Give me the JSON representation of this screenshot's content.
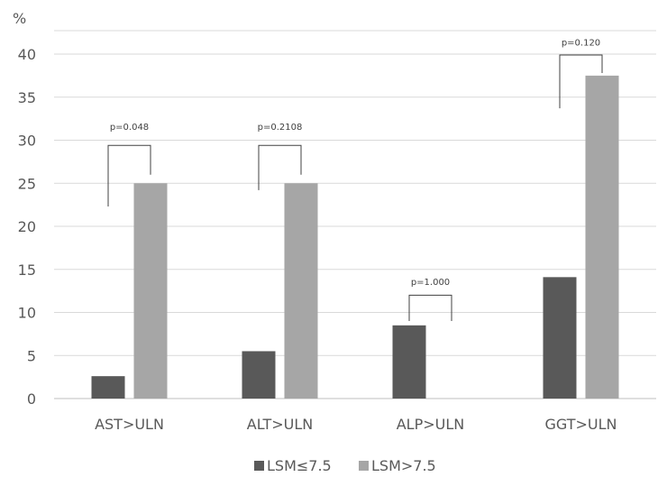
{
  "chart_data": {
    "type": "bar",
    "ylabel": "%",
    "ylim": [
      0,
      40
    ],
    "yticks": [
      0,
      5,
      10,
      15,
      20,
      25,
      30,
      35,
      40
    ],
    "grid": true,
    "legend_position": "bottom",
    "categories": [
      "AST>ULN",
      "ALT>ULN",
      "ALP>ULN",
      "GGT>ULN"
    ],
    "series": [
      {
        "name": "LSM≤7.5",
        "color": "#595959",
        "values": [
          2.6,
          5.5,
          8.5,
          14.1
        ]
      },
      {
        "name": "LSM>7.5",
        "color": "#a6a6a6",
        "values": [
          25,
          25,
          0,
          37.5
        ]
      }
    ],
    "annotations": [
      "p=0.048",
      "p=0.2108",
      "p=1.000",
      "p=0.120"
    ]
  }
}
